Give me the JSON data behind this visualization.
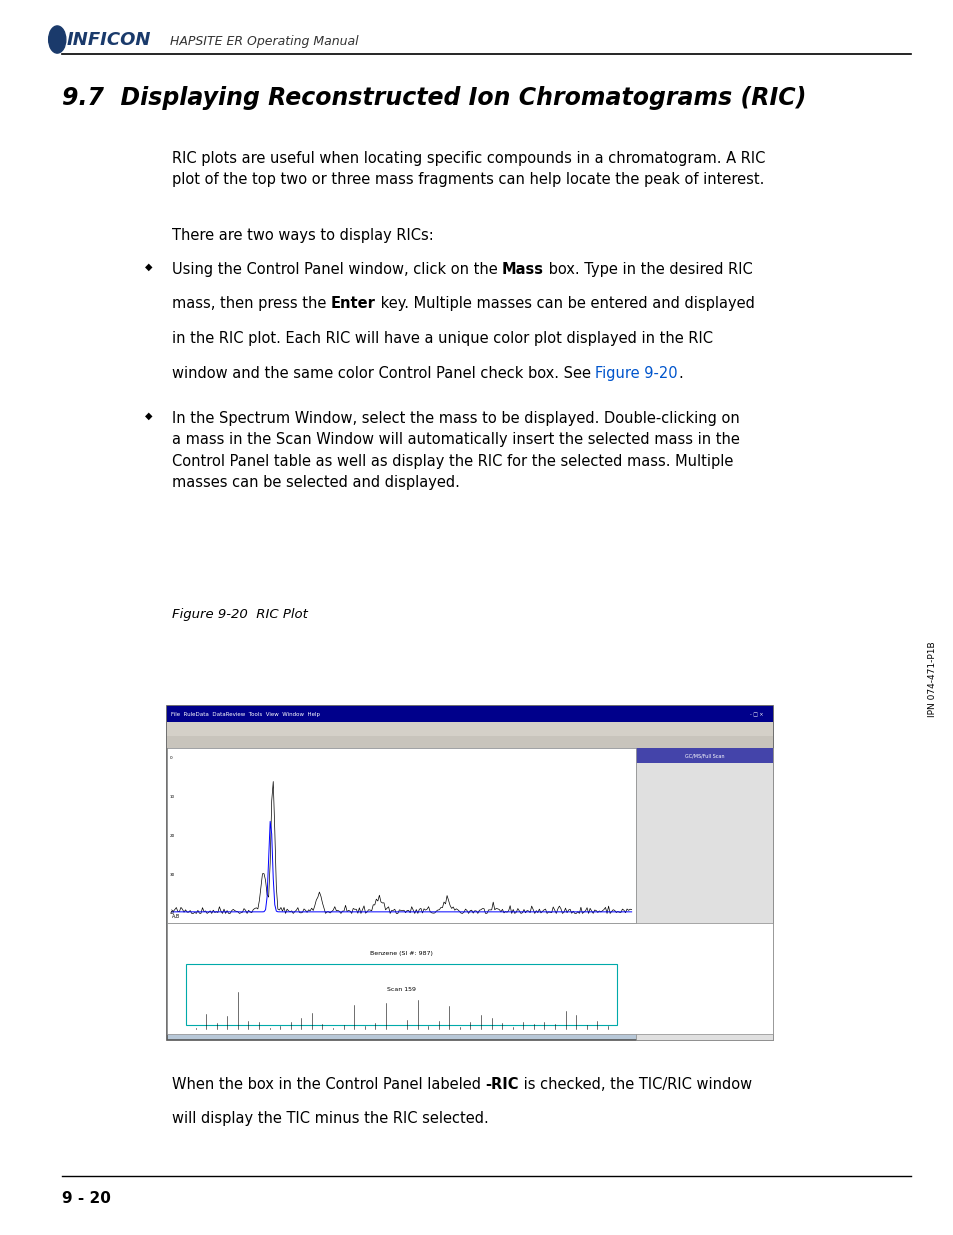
{
  "page_bg": "#ffffff",
  "header_logo_text": "INFICON",
  "header_subtitle": "HAPSITE ER Operating Manual",
  "title": "9.7  Displaying Reconstructed Ion Chromatograms (RIC)",
  "body_indent": 0.18,
  "para1": "RIC plots are useful when locating specific compounds in a chromatogram. A RIC\nplot of the top two or three mass fragments can help locate the peak of interest.",
  "para2": "There are two ways to display RICs:",
  "bullet2": "In the Spectrum Window, select the mass to be displayed. Double-clicking on\na mass in the Scan Window will automatically insert the selected mass in the\nControl Panel table as well as display the RIC for the selected mass. Multiple\nmasses can be selected and displayed.",
  "figure_caption": "Figure 9-20  RIC Plot",
  "footer_text": "9 - 20",
  "side_text": "IPN 074-471-P1B",
  "bullet_char": "◆",
  "link_color": "#0055cc",
  "title_color": "#000000",
  "text_color": "#000000",
  "footer_color": "#000000",
  "line1_parts": [
    [
      "Using the Control Panel window, click on the ",
      "normal"
    ],
    [
      "Mass",
      "bold"
    ],
    [
      " box. Type in the desired RIC",
      "normal"
    ]
  ],
  "line2_parts": [
    [
      "mass, then press the ",
      "normal"
    ],
    [
      "Enter",
      "bold"
    ],
    [
      " key. Multiple masses can be entered and displayed",
      "normal"
    ]
  ],
  "line3_text": "in the RIC plot. Each RIC will have a unique color plot displayed in the RIC",
  "line4_before": "window and the same color Control Panel check box. See ",
  "line4_link": "Figure 9-20",
  "line4_end": ".",
  "below_line1_before": "When the box in the Control Panel labeled ",
  "below_line1_bold": "-RIC",
  "below_line1_after": " is checked, the TIC/RIC window",
  "below_line2": "will display the TIC minus the RIC selected."
}
